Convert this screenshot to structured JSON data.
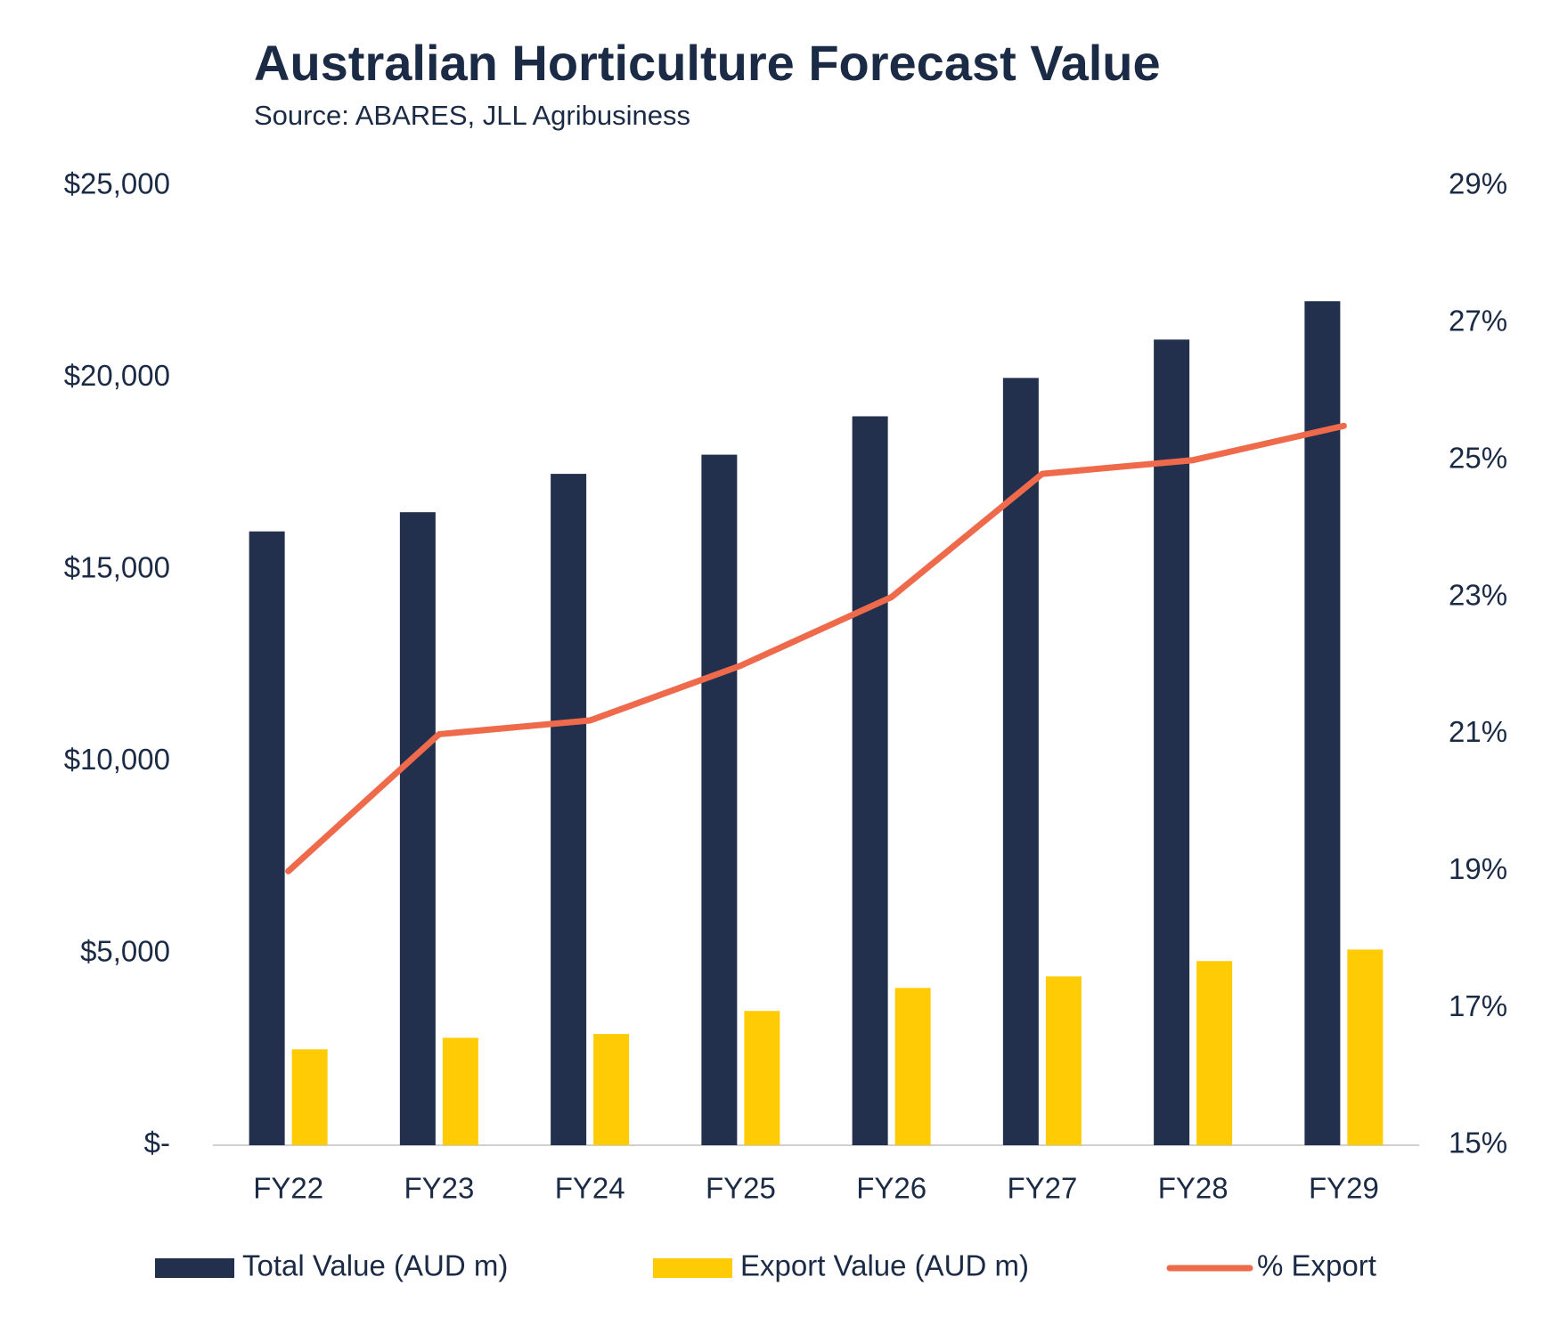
{
  "chart_data": {
    "type": "bar-line",
    "title": "Australian Horticulture Forecast Value",
    "subtitle": "Source: ABARES, JLL Agribusiness",
    "categories": [
      "FY22",
      "FY23",
      "FY24",
      "FY25",
      "FY26",
      "FY27",
      "FY28",
      "FY29"
    ],
    "series": [
      {
        "name": "Total Value (AUD m)",
        "type": "bar",
        "color": "#22304d",
        "values": [
          16000,
          16500,
          17500,
          18000,
          19000,
          20000,
          21000,
          22000
        ]
      },
      {
        "name": "Export Value (AUD m)",
        "type": "bar",
        "color": "#ffcb05",
        "values": [
          2500,
          2800,
          2900,
          3500,
          4100,
          4400,
          4800,
          5100
        ]
      },
      {
        "name": "% Export",
        "type": "line",
        "axis": "y2",
        "color": "#ee6a4b",
        "values": [
          19.0,
          21.0,
          21.2,
          22.0,
          23.0,
          24.8,
          25.0,
          25.5
        ]
      }
    ],
    "ylim": [
      0,
      25000
    ],
    "yticks": [
      {
        "value": 0,
        "label": "$-"
      },
      {
        "value": 5000,
        "label": "$5,000"
      },
      {
        "value": 10000,
        "label": "$10,000"
      },
      {
        "value": 15000,
        "label": "$15,000"
      },
      {
        "value": 20000,
        "label": "$20,000"
      },
      {
        "value": 25000,
        "label": "$25,000"
      }
    ],
    "y2lim": [
      15,
      29
    ],
    "y2ticks": [
      {
        "value": 15,
        "label": "15%"
      },
      {
        "value": 17,
        "label": "17%"
      },
      {
        "value": 19,
        "label": "19%"
      },
      {
        "value": 21,
        "label": "21%"
      },
      {
        "value": 23,
        "label": "23%"
      },
      {
        "value": 25,
        "label": "25%"
      },
      {
        "value": 27,
        "label": "27%"
      },
      {
        "value": 29,
        "label": "29%"
      }
    ],
    "grid": false,
    "legend": "bottom"
  }
}
